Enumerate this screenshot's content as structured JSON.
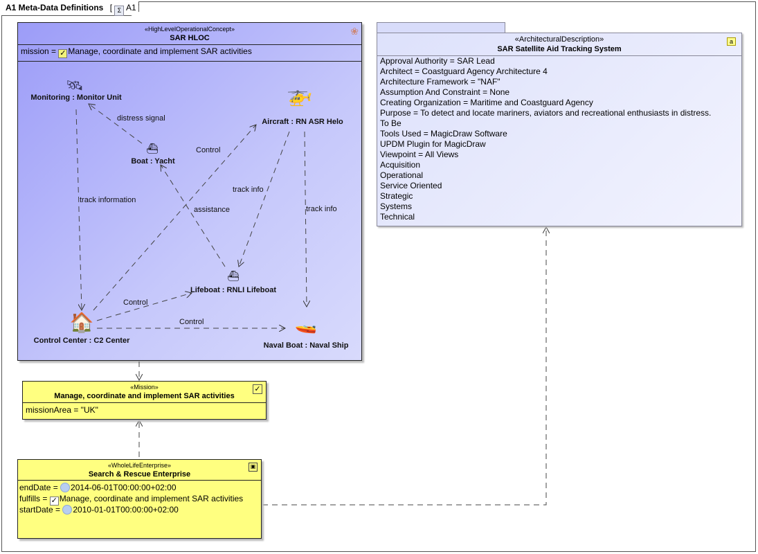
{
  "frame": {
    "title": "A1 Meta-Data Definitions",
    "ref": "A1",
    "icon": "diagram-table-icon"
  },
  "hloc": {
    "stereotype": "«HighLevelOperationalConcept»",
    "name": "SAR HLOC",
    "mission_label": "mission = ",
    "mission_value": "Manage, coordinate and implement SAR activities",
    "icon": "hloc-circles-icon"
  },
  "nodes": [
    {
      "label": "Monitoring : Monitor Unit",
      "icon": "satellite-icon"
    },
    {
      "label": "Aircraft : RN ASR Helo",
      "icon": "helicopter-icon"
    },
    {
      "label": "Boat : Yacht",
      "icon": "yacht-icon"
    },
    {
      "label": "Lifeboat : RNLI Lifeboat",
      "icon": "lifeboat-icon"
    },
    {
      "label": "Control Center : C2 Center",
      "icon": "house-icon"
    },
    {
      "label": "Naval Boat : Naval Ship",
      "icon": "speedboat-icon"
    }
  ],
  "edges": [
    {
      "label": "distress signal"
    },
    {
      "label": "track information"
    },
    {
      "label": "Control"
    },
    {
      "label": "track info"
    },
    {
      "label": "track info"
    },
    {
      "label": "assistance"
    },
    {
      "label": "Control"
    },
    {
      "label": "Control"
    }
  ],
  "mission": {
    "stereotype": "«Mission»",
    "name": "Manage, coordinate and implement SAR activities",
    "area": "missionArea = \"UK\"",
    "icon": "mission-checkbox-icon"
  },
  "enterprise": {
    "stereotype": "«WholeLifeEnterprise»",
    "name": "Search & Rescue Enterprise",
    "icon": "enterprise-icon",
    "end_label": "endDate = ",
    "end_value": "2014-06-01T00:00:00+02:00",
    "fulfills_label": "fulfills = ",
    "fulfills_value": "Manage, coordinate and implement SAR activities",
    "start_label": "startDate = ",
    "start_value": "2010-01-01T00:00:00+02:00"
  },
  "arch": {
    "stereotype": "«ArchitecturalDescription»",
    "name": "SAR Satellite Aid Tracking System",
    "icon": "package-a-icon",
    "props": [
      "Approval Authority = SAR Lead",
      "Architect = Coastguard Agency Architecture 4",
      "Architecture Framework = \"NAF\"",
      "Assumption And Constraint = None",
      "Creating Organization = Maritime and Coastguard Agency",
      "Purpose = To detect and locate mariners, aviators and recreational enthusiasts in distress.",
      "To Be",
      "Tools Used = MagicDraw Software",
      "UPDM Plugin for MagicDraw",
      "Viewpoint = All Views",
      "Acquisition",
      "Operational",
      "Service Oriented",
      "Strategic",
      "Systems",
      "Technical"
    ]
  },
  "colors": {
    "hloc": "#a9abf9",
    "mission": "#ffff80",
    "arch": "#e6e9fc"
  }
}
